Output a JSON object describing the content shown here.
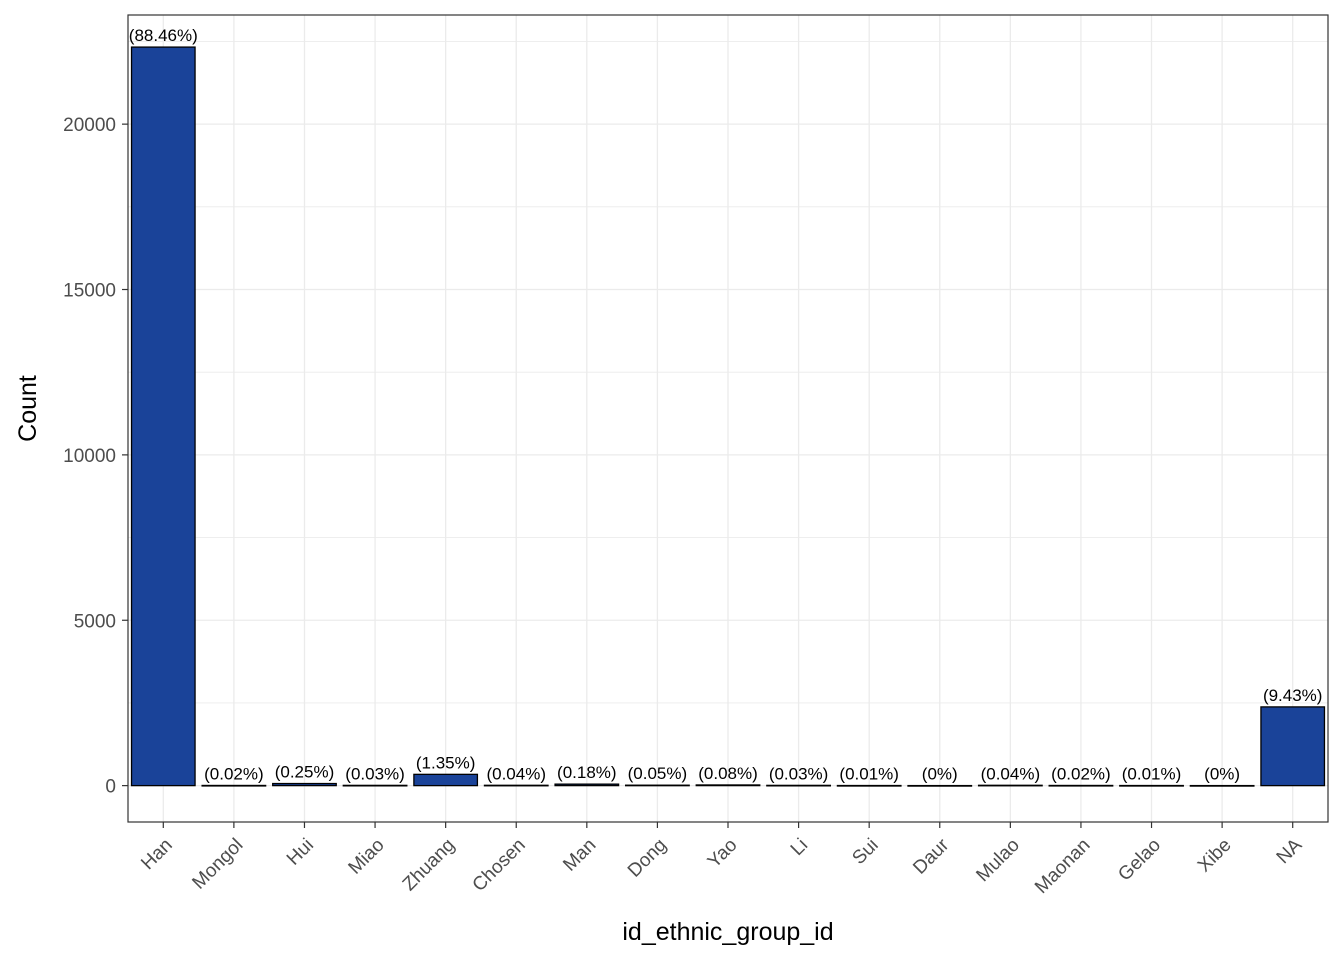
{
  "chart_data": {
    "type": "bar",
    "xlabel": "id_ethnic_group_id",
    "ylabel": "Count",
    "categories": [
      "Han",
      "Mongol",
      "Hui",
      "Miao",
      "Zhuang",
      "Chosen",
      "Man",
      "Dong",
      "Yao",
      "Li",
      "Sui",
      "Daur",
      "Mulao",
      "Maonan",
      "Gelao",
      "Xibe",
      "NA"
    ],
    "values": [
      22330,
      5,
      63,
      8,
      341,
      10,
      45,
      13,
      20,
      8,
      3,
      1,
      10,
      5,
      3,
      1,
      2380
    ],
    "labels": [
      "(88.46%)",
      "(0.02%)",
      "(0.25%)",
      "(0.03%)",
      "(1.35%)",
      "(0.04%)",
      "(0.18%)",
      "(0.05%)",
      "(0.08%)",
      "(0.03%)",
      "(0.01%)",
      "(0%)",
      "(0.04%)",
      "(0.02%)",
      "(0.01%)",
      "(0%)",
      "(9.43%)"
    ],
    "ylim": [
      -1100,
      23300
    ],
    "yticks": [
      0,
      5000,
      10000,
      15000,
      20000
    ],
    "ytick_labels": [
      "0",
      "5000",
      "10000",
      "15000",
      "20000"
    ],
    "grid": true,
    "bar_color": "#1a4399",
    "bar_outline": "#000000",
    "grid_color": "#ebebeb",
    "panel_border": "#333333"
  }
}
